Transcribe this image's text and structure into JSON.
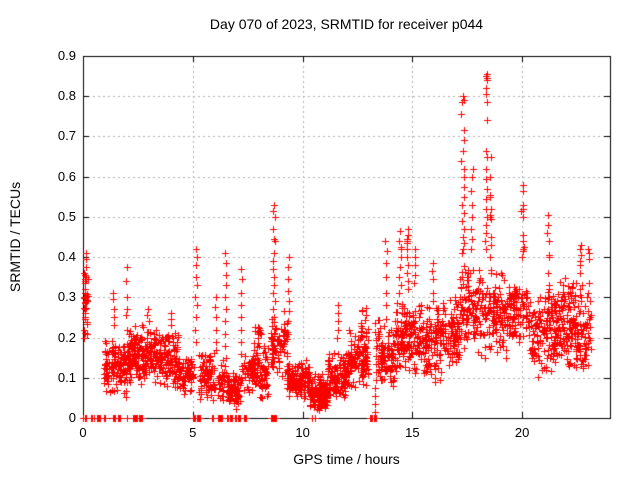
{
  "chart_data": {
    "type": "scatter",
    "title": "Day 070 of 2023, SRMTID for receiver p044",
    "xlabel": "GPS time / hours",
    "ylabel": "SRMTID / TECUs",
    "xlim": [
      0,
      24
    ],
    "ylim": [
      0,
      0.9
    ],
    "xticks": [
      0,
      5,
      10,
      15,
      20
    ],
    "yticks": [
      0,
      0.1,
      0.2,
      0.3,
      0.4,
      0.5,
      0.6,
      0.7,
      0.8,
      0.9
    ],
    "grid": true,
    "legend": "none",
    "marker": "plus",
    "marker_size_px": 7,
    "colors": {
      "marker": "#ff0000",
      "grid": "#b4b4b4",
      "axis": "#000000",
      "background": "#ffffff",
      "text": "#000000"
    },
    "seed": 70,
    "band_fields": [
      "x_start",
      "x_end",
      "y_min",
      "y_max",
      "count"
    ],
    "bands": [
      [
        0.03,
        0.22,
        0.18,
        0.36,
        20
      ],
      [
        0.95,
        2.1,
        0.05,
        0.21,
        140
      ],
      [
        2.1,
        3.35,
        0.08,
        0.235,
        170
      ],
      [
        3.35,
        4.35,
        0.07,
        0.22,
        120
      ],
      [
        4.35,
        5.05,
        0.05,
        0.16,
        70
      ],
      [
        5.25,
        6.0,
        0.04,
        0.165,
        80
      ],
      [
        6.1,
        6.5,
        0.04,
        0.15,
        40
      ],
      [
        6.55,
        7.15,
        0.02,
        0.12,
        70
      ],
      [
        7.25,
        8.45,
        0.04,
        0.19,
        120
      ],
      [
        7.7,
        8.1,
        0.16,
        0.245,
        15
      ],
      [
        8.5,
        9.3,
        0.09,
        0.27,
        80
      ],
      [
        9.3,
        10.3,
        0.04,
        0.15,
        130
      ],
      [
        10.3,
        11.15,
        0.015,
        0.115,
        130
      ],
      [
        11.15,
        12.1,
        0.04,
        0.165,
        120
      ],
      [
        12.1,
        13.0,
        0.07,
        0.225,
        110
      ],
      [
        12.55,
        12.9,
        0.2,
        0.3,
        10
      ],
      [
        13.4,
        14.25,
        0.05,
        0.25,
        100
      ],
      [
        14.25,
        15.3,
        0.1,
        0.3,
        130
      ],
      [
        15.3,
        16.35,
        0.08,
        0.3,
        120
      ],
      [
        16.35,
        17.15,
        0.12,
        0.32,
        100
      ],
      [
        17.15,
        18.2,
        0.14,
        0.4,
        110
      ],
      [
        18.2,
        19.3,
        0.14,
        0.38,
        110
      ],
      [
        19.3,
        20.35,
        0.17,
        0.35,
        100
      ],
      [
        20.35,
        21.1,
        0.1,
        0.33,
        75
      ],
      [
        21.1,
        22.45,
        0.1,
        0.36,
        190
      ],
      [
        22.45,
        23.15,
        0.1,
        0.3,
        60
      ]
    ],
    "spikes": [
      {
        "x": 0.1,
        "jx": 0.05,
        "y": [
          0.41,
          0.395,
          0.375,
          0.36,
          0.355,
          0.35,
          0.345,
          0.34,
          0.335,
          0.31,
          0.3,
          0.27,
          0.25,
          0.22,
          0.2
        ]
      },
      {
        "x": 1.4,
        "jx": 0.04,
        "y": [
          0.31,
          0.295,
          0.27,
          0.25,
          0.23
        ]
      },
      {
        "x": 2.0,
        "jx": 0.03,
        "y": [
          0.375,
          0.34,
          0.3,
          0.27,
          0.255,
          0.22
        ]
      },
      {
        "x": 2.95,
        "jx": 0.06,
        "y": [
          0.27,
          0.255,
          0.24
        ]
      },
      {
        "x": 4.0,
        "jx": 0.04,
        "y": [
          0.26,
          0.245,
          0.23
        ]
      },
      {
        "x": 5.15,
        "jx": 0.05,
        "y": [
          0.42,
          0.4,
          0.38,
          0.35,
          0.33,
          0.3,
          0.28,
          0.25,
          0.22,
          0.19
        ]
      },
      {
        "x": 6.05,
        "jx": 0.03,
        "y": [
          0.3,
          0.275,
          0.25,
          0.22,
          0.19,
          0.17
        ]
      },
      {
        "x": 6.5,
        "jx": 0.04,
        "y": [
          0.41,
          0.385,
          0.355,
          0.33,
          0.3,
          0.27,
          0.24,
          0.21,
          0.18,
          0.15
        ]
      },
      {
        "x": 7.2,
        "jx": 0.04,
        "y": [
          0.37,
          0.345,
          0.31,
          0.28,
          0.25,
          0.22,
          0.19,
          0.16,
          0.13,
          0.1
        ]
      },
      {
        "x": 8.7,
        "jx": 0.06,
        "y": [
          0.53,
          0.515,
          0.5,
          0.47,
          0.445,
          0.44,
          0.41,
          0.39,
          0.37,
          0.35,
          0.33,
          0.31,
          0.29,
          0.27,
          0.25
        ]
      },
      {
        "x": 9.35,
        "jx": 0.04,
        "y": [
          0.4,
          0.375,
          0.345,
          0.315,
          0.29,
          0.265,
          0.24,
          0.21
        ]
      },
      {
        "x": 11.6,
        "jx": 0.04,
        "y": [
          0.28,
          0.26,
          0.24,
          0.22,
          0.2
        ]
      },
      {
        "x": 13.32,
        "jx": 0.02,
        "y": [
          0.235,
          0.215,
          0.195,
          0.175,
          0.155,
          0.135,
          0.115,
          0.095,
          0.075,
          0.055,
          0.035,
          0.015
        ]
      },
      {
        "x": 13.8,
        "jx": 0.03,
        "y": [
          0.44,
          0.415,
          0.385,
          0.35,
          0.31,
          0.28
        ]
      },
      {
        "x": 14.45,
        "jx": 0.05,
        "y": [
          0.465,
          0.44,
          0.425,
          0.42,
          0.4,
          0.375,
          0.35,
          0.33,
          0.31
        ]
      },
      {
        "x": 14.78,
        "jx": 0.04,
        "y": [
          0.47,
          0.455,
          0.445,
          0.44,
          0.435,
          0.42,
          0.4,
          0.38,
          0.36,
          0.34,
          0.32
        ]
      },
      {
        "x": 15.1,
        "jx": 0.04,
        "y": [
          0.42,
          0.4,
          0.38,
          0.355,
          0.335
        ]
      },
      {
        "x": 15.95,
        "jx": 0.04,
        "y": [
          0.385,
          0.365,
          0.345,
          0.31,
          0.29
        ]
      },
      {
        "x": 17.3,
        "jx": 0.08,
        "y": [
          0.8,
          0.79,
          0.785,
          0.755,
          0.715,
          0.69,
          0.665,
          0.64,
          0.62,
          0.6,
          0.575,
          0.55,
          0.53,
          0.51,
          0.49,
          0.47,
          0.45,
          0.435,
          0.42,
          0.41
        ]
      },
      {
        "x": 17.7,
        "jx": 0.06,
        "y": [
          0.62,
          0.6,
          0.565,
          0.53,
          0.5,
          0.47,
          0.445,
          0.42
        ]
      },
      {
        "x": 18.35,
        "jx": 0.05,
        "y": [
          0.855,
          0.85,
          0.845,
          0.84,
          0.82,
          0.805,
          0.785,
          0.74,
          0.665,
          0.65,
          0.62,
          0.595,
          0.57,
          0.545,
          0.52,
          0.5,
          0.48,
          0.46,
          0.44,
          0.42
        ]
      },
      {
        "x": 18.55,
        "jx": 0.05,
        "y": [
          0.65,
          0.6,
          0.555,
          0.55,
          0.52,
          0.505,
          0.5,
          0.495,
          0.45,
          0.43,
          0.4
        ]
      },
      {
        "x": 20.0,
        "jx": 0.07,
        "y": [
          0.58,
          0.565,
          0.53,
          0.52,
          0.515,
          0.5,
          0.455,
          0.44,
          0.425,
          0.42,
          0.415,
          0.4
        ]
      },
      {
        "x": 21.2,
        "jx": 0.05,
        "y": [
          0.505,
          0.48,
          0.46,
          0.44,
          0.405,
          0.4,
          0.36,
          0.33,
          0.3
        ]
      },
      {
        "x": 22.68,
        "jx": 0.05,
        "y": [
          0.43,
          0.42,
          0.405,
          0.39,
          0.38,
          0.36,
          0.33,
          0.32,
          0.305,
          0.3,
          0.29
        ]
      },
      {
        "x": 23.0,
        "jx": 0.05,
        "y": [
          0.42,
          0.41,
          0.395,
          0.335,
          0.31,
          0.3,
          0.265,
          0.245,
          0.235
        ]
      }
    ],
    "zero_runs": [
      [
        0.02,
        0.16
      ],
      [
        0.35,
        0.44
      ],
      [
        0.52,
        0.56
      ],
      [
        0.62,
        0.78
      ],
      [
        0.95,
        1.02
      ],
      [
        1.38,
        1.48
      ],
      [
        1.58,
        1.72
      ],
      [
        2.02,
        2.06
      ],
      [
        2.28,
        2.72
      ],
      [
        5.02,
        5.32
      ],
      [
        5.86,
        5.94
      ],
      [
        6.14,
        6.34
      ],
      [
        6.56,
        6.64
      ],
      [
        6.7,
        6.82
      ],
      [
        6.94,
        7.04
      ],
      [
        7.1,
        7.18
      ],
      [
        7.32,
        7.44
      ],
      [
        8.56,
        8.84
      ],
      [
        10.44,
        10.48
      ],
      [
        10.56,
        10.6
      ],
      [
        13.08,
        13.34
      ]
    ]
  }
}
